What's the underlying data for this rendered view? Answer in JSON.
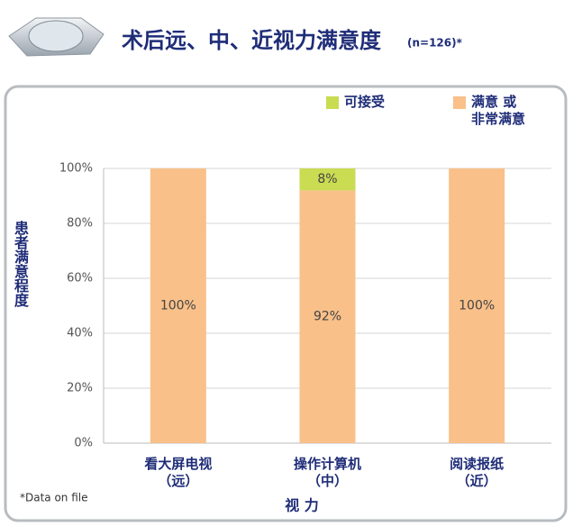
{
  "chart_data": {
    "type": "stacked_bar",
    "title": "术后远、中、近视力满意度",
    "subtitle": "(n=126)*",
    "y_label": "患者满意程度",
    "x_label": "视 力",
    "footnote": "*Data on file",
    "categories": [
      "看大屏电视\n（远）",
      "操作计算机\n（中）",
      "阅读报纸\n（近）"
    ],
    "series": [
      {
        "name": "满意 或\n非常满意",
        "color": "#f9c089",
        "values": [
          100,
          92,
          100
        ],
        "value_labels": [
          "100%",
          "92%",
          "100%"
        ]
      },
      {
        "name": "可接受",
        "color": "#c9dc52",
        "values": [
          0,
          8,
          0
        ],
        "value_labels": [
          null,
          "8%",
          null
        ]
      }
    ],
    "ylim": [
      0,
      100
    ],
    "yticks": [
      {
        "value": 0,
        "label": "0%"
      },
      {
        "value": 20,
        "label": "20%"
      },
      {
        "value": 40,
        "label": "40%"
      },
      {
        "value": 60,
        "label": "60%"
      },
      {
        "value": 80,
        "label": "80%"
      },
      {
        "value": 100,
        "label": "100%"
      }
    ],
    "grid": true
  }
}
